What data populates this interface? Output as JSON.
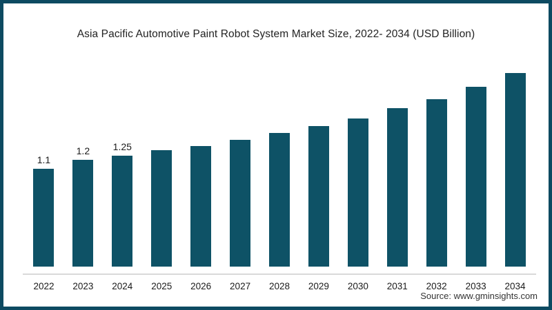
{
  "chart_data": {
    "type": "bar",
    "title": "Asia Pacific Automotive Paint Robot System Market Size, 2022- 2034 (USD Billion)",
    "categories": [
      "2022",
      "2023",
      "2024",
      "2025",
      "2026",
      "2027",
      "2028",
      "2029",
      "2030",
      "2031",
      "2032",
      "2033",
      "2034"
    ],
    "values": [
      1.1,
      1.2,
      1.25,
      1.31,
      1.36,
      1.43,
      1.5,
      1.58,
      1.67,
      1.78,
      1.88,
      2.02,
      2.18
    ],
    "data_labels": [
      "1.1",
      "1.2",
      "1.25",
      "",
      "",
      "",
      "",
      "",
      "",
      "",
      "",
      "",
      ""
    ],
    "xlabel": "",
    "ylabel": "",
    "ylim": [
      0,
      2.3
    ],
    "grid": false,
    "legend": "none"
  },
  "source": {
    "text": "Source: www.gminsights.com"
  },
  "colors": {
    "bar": "#0e5266",
    "frame_border": "#0d4a61",
    "axis_line": "#d9d9d9",
    "title_text": "#222222",
    "label_text": "#1a1a1a"
  }
}
